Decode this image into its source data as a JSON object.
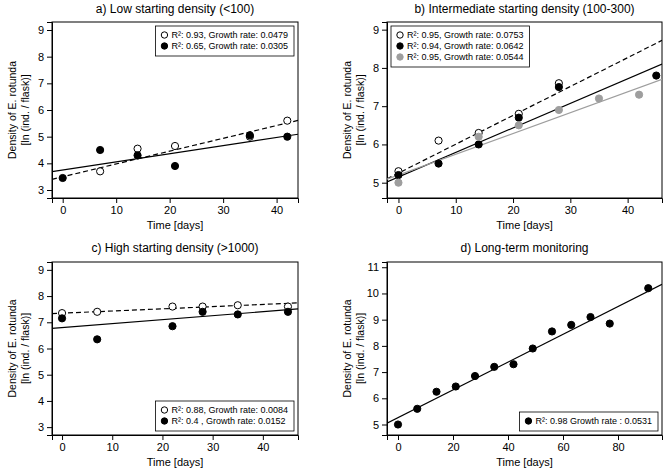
{
  "chart_data": [
    {
      "type": "scatter",
      "title": "a) Low starting density (<100)",
      "x_label": "Time [days]",
      "y_label": [
        "Density of E. rotunda",
        "[ln (ind. / flask)]"
      ],
      "xlim": [
        -2,
        44
      ],
      "xticks": [
        0,
        10,
        20,
        30,
        40
      ],
      "ylim": [
        2.7,
        9.3
      ],
      "yticks": [
        3,
        4,
        5,
        6,
        7,
        8,
        9
      ],
      "legend": "top-right",
      "series": [
        {
          "name": "R²: 0.93, Growth rate: 0.0479",
          "color": "#000000",
          "marker": "open-circle",
          "line_style": "dashed",
          "x": [
            7,
            14,
            21,
            35,
            42
          ],
          "values": [
            3.7,
            4.55,
            4.65,
            5.0,
            5.6
          ],
          "fit": {
            "x": [
              -2,
              44
            ],
            "values": [
              3.4,
              5.61
            ]
          }
        },
        {
          "name": "R²: 0.65, Growth rate: 0.0305",
          "color": "#000000",
          "marker": "filled-circle",
          "line_style": "solid",
          "x": [
            0,
            7,
            14,
            21,
            35,
            42
          ],
          "values": [
            3.45,
            4.5,
            4.3,
            3.9,
            5.05,
            5.0
          ],
          "fit": {
            "x": [
              -2,
              44
            ],
            "values": [
              3.69,
              5.09
            ]
          }
        }
      ]
    },
    {
      "type": "scatter",
      "title": "b) Intermediate starting density (100-300)",
      "x_label": "Time [days]",
      "y_label": [
        "Density of E. rotunda",
        "[ln (ind. / flask)]"
      ],
      "xlim": [
        -2,
        46
      ],
      "xticks": [
        0,
        10,
        20,
        30,
        40
      ],
      "ylim": [
        4.6,
        9.2
      ],
      "yticks": [
        5,
        6,
        7,
        8,
        9
      ],
      "legend": "top-left",
      "series": [
        {
          "name": "R²: 0.95, Growth rate: 0.0753",
          "color": "#000000",
          "marker": "open-circle",
          "line_style": "dashed",
          "x": [
            0,
            7,
            14,
            21,
            28
          ],
          "values": [
            5.3,
            6.1,
            6.3,
            6.8,
            7.6
          ],
          "fit": {
            "x": [
              -2,
              46
            ],
            "values": [
              5.1,
              8.72
            ]
          }
        },
        {
          "name": "R²: 0.94, Growth rate: 0.0642",
          "color": "#000000",
          "marker": "filled-circle",
          "line_style": "solid",
          "x": [
            0,
            7,
            14,
            21,
            28,
            45
          ],
          "values": [
            5.2,
            5.5,
            6.0,
            6.7,
            7.5,
            7.8
          ],
          "fit": {
            "x": [
              -2,
              46
            ],
            "values": [
              5.02,
              8.1
            ]
          }
        },
        {
          "name": "R²: 0.95, Growth rate: 0.0544",
          "color": "#9e9e9e",
          "marker": "filled-circle",
          "line_style": "solid",
          "x": [
            0,
            14,
            21,
            28,
            35,
            42
          ],
          "values": [
            5.0,
            6.2,
            6.5,
            6.9,
            7.2,
            7.3
          ],
          "fit": {
            "x": [
              -2,
              46
            ],
            "values": [
              5.09,
              7.7
            ]
          }
        }
      ]
    },
    {
      "type": "scatter",
      "title": "c) High starting density (>1000)",
      "x_label": "Time [days]",
      "y_label": [
        "Density of E. rotunda",
        "[ln (ind. / flask)]"
      ],
      "xlim": [
        -2,
        47
      ],
      "xticks": [
        0,
        10,
        20,
        30,
        40
      ],
      "ylim": [
        2.7,
        9.3
      ],
      "yticks": [
        3,
        4,
        5,
        6,
        7,
        8,
        9
      ],
      "legend": "bottom-right",
      "series": [
        {
          "name": "R²: 0.88, Growth rate: 0.0084",
          "color": "#000000",
          "marker": "open-circle",
          "line_style": "dashed",
          "x": [
            0,
            7,
            22,
            28,
            35,
            45
          ],
          "values": [
            7.35,
            7.4,
            7.6,
            7.6,
            7.65,
            7.6
          ],
          "fit": {
            "x": [
              -2,
              47
            ],
            "values": [
              7.33,
              7.74
            ]
          }
        },
        {
          "name": "R²: 0.4 , Growth rate: 0.0152",
          "color": "#000000",
          "marker": "filled-circle",
          "line_style": "solid",
          "x": [
            0,
            7,
            22,
            28,
            35,
            45
          ],
          "values": [
            7.15,
            6.35,
            6.85,
            7.4,
            7.3,
            7.4
          ],
          "fit": {
            "x": [
              -2,
              47
            ],
            "values": [
              6.77,
              7.51
            ]
          }
        }
      ]
    },
    {
      "type": "scatter",
      "title": "d) Long-term monitoring",
      "x_label": "Time [days]",
      "y_label": [
        "Density of E. rotunda",
        "[ln (ind. / flask)]"
      ],
      "xlim": [
        -4,
        96
      ],
      "xticks": [
        0,
        20,
        40,
        60,
        80
      ],
      "ylim": [
        4.6,
        11.2
      ],
      "yticks": [
        5,
        6,
        7,
        8,
        9,
        10,
        11
      ],
      "legend": "bottom-right",
      "series": [
        {
          "name": "R²: 0.98 Growth rate : 0.0531",
          "color": "#000000",
          "marker": "filled-circle",
          "line_style": "solid",
          "x": [
            0,
            7,
            14,
            21,
            28,
            35,
            42,
            49,
            56,
            63,
            70,
            77,
            91
          ],
          "values": [
            5.0,
            5.6,
            6.25,
            6.45,
            6.85,
            7.2,
            7.3,
            7.9,
            8.55,
            8.8,
            9.1,
            8.85,
            10.2
          ],
          "fit": {
            "x": [
              -4,
              96
            ],
            "values": [
              5.05,
              10.35
            ]
          }
        }
      ]
    }
  ]
}
